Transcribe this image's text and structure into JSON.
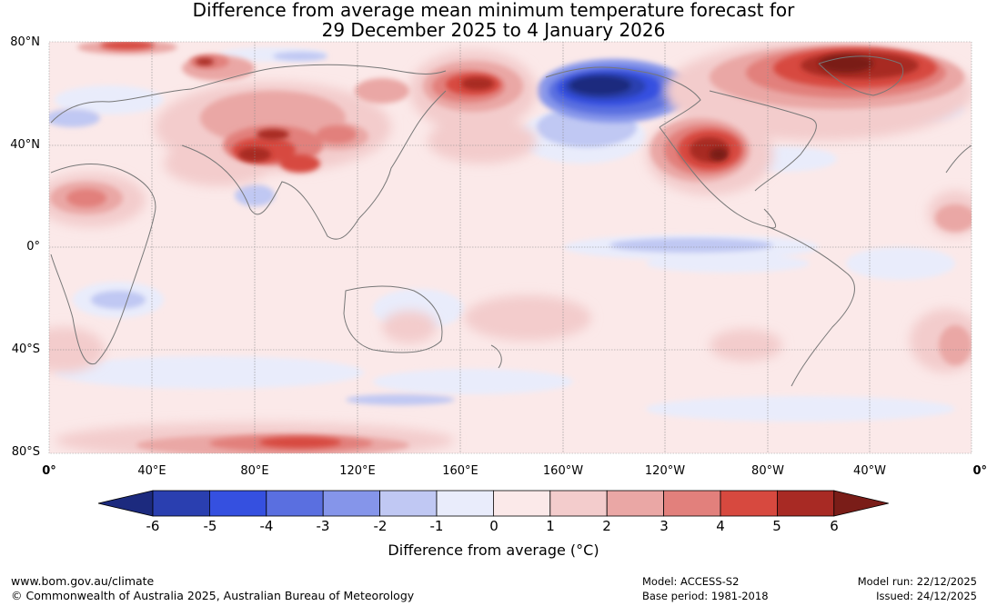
{
  "title_line1": "Difference from average mean minimum temperature forecast for",
  "title_line2": "29 December 2025 to 4 January 2026",
  "lat_labels": [
    "80°N",
    "40°N",
    "0°",
    "40°S",
    "80°S"
  ],
  "lon_labels": [
    "0°",
    "40°E",
    "80°E",
    "120°E",
    "160°E",
    "160°W",
    "120°W",
    "80°W",
    "40°W",
    "0°"
  ],
  "colorbar": {
    "ticks": [
      "-6",
      "-5",
      "-4",
      "-3",
      "-2",
      "-1",
      "0",
      "1",
      "2",
      "3",
      "4",
      "5",
      "6"
    ],
    "colors": [
      "#1c2a7e",
      "#2a3fb0",
      "#3550e0",
      "#5a6fe0",
      "#8595ea",
      "#c0c8f3",
      "#e9ecfb",
      "#fbe9e9",
      "#f3cccc",
      "#eaa7a5",
      "#e2807c",
      "#d7493f",
      "#a82a24",
      "#7a1d18"
    ],
    "label": "Difference from average (°C)"
  },
  "footer": {
    "url": "www.bom.gov.au/climate",
    "copyright": "© Commonwealth of Australia 2025, Australian Bureau of Meteorology",
    "model": "Model: ACCESS-S2",
    "base_period": "Base period: 1981-2018",
    "model_run": "Model run: 22/12/2025",
    "issued": "Issued: 24/12/2025"
  }
}
